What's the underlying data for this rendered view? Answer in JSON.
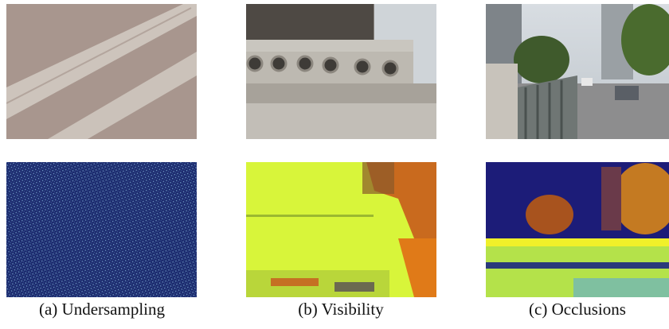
{
  "figure": {
    "panels": [
      {
        "caption": "(a) Undersampling"
      },
      {
        "caption": "(b) Visibility"
      },
      {
        "caption": "(c) Occlusions"
      }
    ]
  }
}
